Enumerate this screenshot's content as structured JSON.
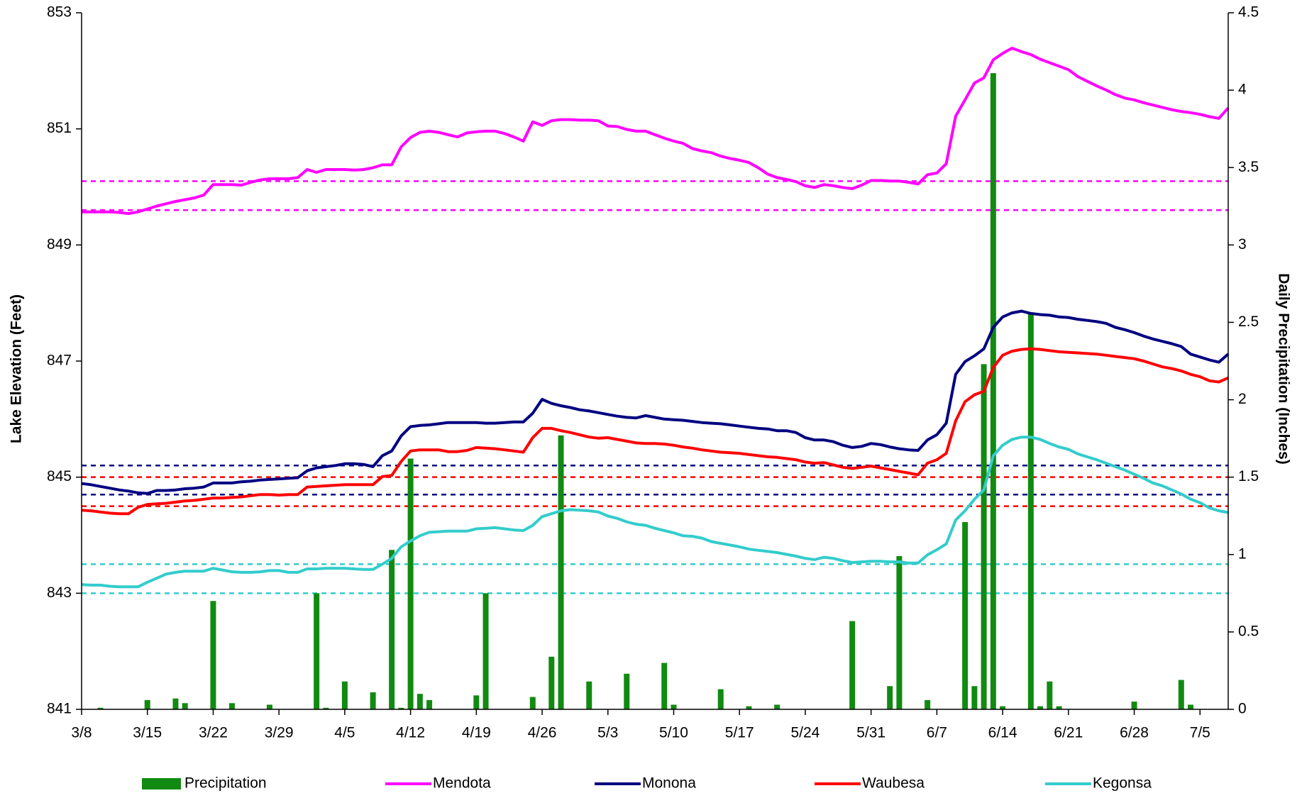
{
  "chart_data": {
    "type": "line",
    "ylabel": "Lake Elevation (Feet)",
    "y2label": "Daily Precipitation (Inches)",
    "ylim": [
      841,
      853
    ],
    "yticks": [
      841,
      843,
      845,
      847,
      849,
      851,
      853
    ],
    "y2lim": [
      0,
      4.5
    ],
    "y2ticks": [
      0,
      0.5,
      1,
      1.5,
      2,
      2.5,
      3,
      3.5,
      4,
      4.5
    ],
    "legend": "bottom",
    "categories": [
      "3/8",
      null,
      null,
      null,
      null,
      null,
      null,
      "3/15",
      null,
      null,
      null,
      null,
      null,
      null,
      "3/22",
      null,
      null,
      null,
      null,
      null,
      null,
      "3/29",
      null,
      null,
      null,
      null,
      null,
      null,
      "4/5",
      null,
      null,
      null,
      null,
      null,
      null,
      "4/12",
      null,
      null,
      null,
      null,
      null,
      null,
      "4/19",
      null,
      null,
      null,
      null,
      null,
      null,
      "4/26",
      null,
      null,
      null,
      null,
      null,
      null,
      "5/3",
      null,
      null,
      null,
      null,
      null,
      null,
      "5/10",
      null,
      null,
      null,
      null,
      null,
      null,
      "5/17",
      null,
      null,
      null,
      null,
      null,
      null,
      "5/24",
      null,
      null,
      null,
      null,
      null,
      null,
      "5/31",
      null,
      null,
      null,
      null,
      null,
      null,
      "6/7",
      null,
      null,
      null,
      null,
      null,
      null,
      "6/14",
      null,
      null,
      null,
      null,
      null,
      null,
      "6/21",
      null,
      null,
      null,
      null,
      null,
      null,
      "6/28",
      null,
      null,
      null,
      null,
      null,
      null,
      "7/5",
      null,
      null,
      null
    ],
    "reference_lines": [
      {
        "value": 850.1,
        "color": "#ff00ff"
      },
      {
        "value": 849.6,
        "color": "#ff00ff"
      },
      {
        "value": 845.2,
        "color": "#000080"
      },
      {
        "value": 844.7,
        "color": "#000080"
      },
      {
        "value": 845.0,
        "color": "#ff0000"
      },
      {
        "value": 844.5,
        "color": "#ff0000"
      },
      {
        "value": 843.5,
        "color": "#33cccc"
      },
      {
        "value": 843.0,
        "color": "#33cccc"
      }
    ],
    "series": [
      {
        "name": "Precipitation",
        "type": "bar",
        "axis": "y2",
        "color": "#118a11",
        "values": [
          0,
          0,
          0.01,
          0,
          0,
          0,
          0,
          0.06,
          0,
          0,
          0.07,
          0.04,
          0,
          0,
          0.7,
          0,
          0.04,
          0,
          0,
          0,
          0.03,
          0,
          0,
          0,
          0,
          0.75,
          0.01,
          0,
          0.18,
          0,
          0,
          0.11,
          0,
          1.03,
          0.01,
          1.62,
          0.1,
          0.06,
          0,
          0,
          0,
          0,
          0.09,
          0.75,
          0,
          0,
          0,
          0,
          0.08,
          0,
          0.34,
          1.77,
          0,
          0,
          0.18,
          0,
          0,
          0,
          0.23,
          0,
          0,
          0,
          0.3,
          0.03,
          0,
          0,
          0,
          0,
          0.13,
          0,
          0,
          0.02,
          0,
          0,
          0.03,
          0,
          0,
          0,
          0,
          0,
          0,
          0,
          0.57,
          0,
          0,
          0,
          0.15,
          0.99,
          0,
          0,
          0.06,
          0,
          0,
          0,
          1.21,
          0.15,
          2.23,
          4.11,
          0.02,
          0,
          0,
          2.56,
          0.02,
          0.18,
          0.02,
          0,
          0,
          0,
          0,
          0,
          0,
          0,
          0.05,
          0,
          0,
          0,
          0,
          0.19,
          0.03,
          0,
          0,
          0,
          0
        ]
      },
      {
        "name": "Mendota",
        "type": "line",
        "color": "#ff00ff",
        "values": [
          849.57,
          849.57,
          849.57,
          849.57,
          849.56,
          849.54,
          849.57,
          849.62,
          849.67,
          849.71,
          849.75,
          849.78,
          849.81,
          849.86,
          850.04,
          850.04,
          850.04,
          850.03,
          850.08,
          850.12,
          850.14,
          850.14,
          850.14,
          850.16,
          850.3,
          850.25,
          850.3,
          850.3,
          850.3,
          850.29,
          850.3,
          850.33,
          850.38,
          850.38,
          850.69,
          850.85,
          850.94,
          850.96,
          850.94,
          850.9,
          850.86,
          850.93,
          850.95,
          850.96,
          850.96,
          850.92,
          850.86,
          850.79,
          851.12,
          851.06,
          851.14,
          851.16,
          851.16,
          851.15,
          851.15,
          851.14,
          851.05,
          851.04,
          850.99,
          850.96,
          850.96,
          850.9,
          850.84,
          850.79,
          850.75,
          850.66,
          850.62,
          850.59,
          850.53,
          850.49,
          850.46,
          850.42,
          850.33,
          850.22,
          850.16,
          850.13,
          850.09,
          850.02,
          849.99,
          850.04,
          850.02,
          849.99,
          849.97,
          850.03,
          850.11,
          850.11,
          850.1,
          850.1,
          850.08,
          850.05,
          850.21,
          850.24,
          850.4,
          851.22,
          851.5,
          851.79,
          851.88,
          852.19,
          852.3,
          852.39,
          852.33,
          852.28,
          852.2,
          852.14,
          852.08,
          852.02,
          851.9,
          851.82,
          851.74,
          851.67,
          851.59,
          851.53,
          851.5,
          851.45,
          851.41,
          851.37,
          851.33,
          851.3,
          851.28,
          851.25,
          851.21,
          851.18,
          851.36
        ]
      },
      {
        "name": "Monona",
        "type": "line",
        "color": "#000080",
        "values": [
          844.89,
          844.87,
          844.84,
          844.81,
          844.78,
          844.76,
          844.73,
          844.72,
          844.77,
          844.77,
          844.78,
          844.8,
          844.81,
          844.83,
          844.9,
          844.9,
          844.9,
          844.92,
          844.93,
          844.95,
          844.96,
          844.97,
          844.98,
          844.99,
          845.11,
          845.16,
          845.18,
          845.2,
          845.23,
          845.23,
          845.22,
          845.18,
          845.37,
          845.45,
          845.71,
          845.87,
          845.89,
          845.9,
          845.92,
          845.94,
          845.94,
          845.94,
          845.94,
          845.93,
          845.93,
          845.94,
          845.95,
          845.95,
          846.1,
          846.34,
          846.27,
          846.23,
          846.2,
          846.16,
          846.14,
          846.11,
          846.08,
          846.05,
          846.03,
          846.02,
          846.06,
          846.03,
          846.0,
          845.99,
          845.98,
          845.96,
          845.94,
          845.93,
          845.92,
          845.9,
          845.88,
          845.86,
          845.84,
          845.83,
          845.8,
          845.8,
          845.77,
          845.68,
          845.64,
          845.64,
          845.61,
          845.55,
          845.51,
          845.53,
          845.58,
          845.56,
          845.52,
          845.49,
          845.47,
          845.46,
          845.64,
          845.73,
          845.93,
          846.77,
          846.99,
          847.09,
          847.21,
          847.58,
          847.76,
          847.83,
          847.86,
          847.82,
          847.8,
          847.79,
          847.76,
          847.75,
          847.72,
          847.7,
          847.68,
          847.65,
          847.58,
          847.54,
          847.49,
          847.43,
          847.38,
          847.34,
          847.3,
          847.25,
          847.12,
          847.07,
          847.02,
          846.98,
          847.12
        ]
      },
      {
        "name": "Waubesa",
        "type": "line",
        "color": "#ff0000",
        "values": [
          844.43,
          844.42,
          844.4,
          844.38,
          844.37,
          844.37,
          844.48,
          844.53,
          844.54,
          844.55,
          844.57,
          844.59,
          844.6,
          844.62,
          844.64,
          844.64,
          844.65,
          844.66,
          844.68,
          844.7,
          844.7,
          844.69,
          844.7,
          844.7,
          844.83,
          844.84,
          844.85,
          844.86,
          844.87,
          844.87,
          844.87,
          844.87,
          845.01,
          845.03,
          845.27,
          845.45,
          845.47,
          845.47,
          845.47,
          845.44,
          845.44,
          845.46,
          845.51,
          845.5,
          845.49,
          845.47,
          845.45,
          845.43,
          845.68,
          845.84,
          845.84,
          845.8,
          845.77,
          845.73,
          845.69,
          845.67,
          845.68,
          845.65,
          845.62,
          845.59,
          845.58,
          845.58,
          845.57,
          845.55,
          845.52,
          845.5,
          845.47,
          845.45,
          845.43,
          845.42,
          845.41,
          845.39,
          845.37,
          845.35,
          845.34,
          845.32,
          845.3,
          845.26,
          845.24,
          845.25,
          845.21,
          845.17,
          845.15,
          845.17,
          845.19,
          845.16,
          845.13,
          845.1,
          845.07,
          845.04,
          845.24,
          845.3,
          845.41,
          845.97,
          846.3,
          846.42,
          846.48,
          846.89,
          847.1,
          847.17,
          847.2,
          847.21,
          847.2,
          847.18,
          847.16,
          847.15,
          847.14,
          847.13,
          847.12,
          847.1,
          847.08,
          847.06,
          847.04,
          847.0,
          846.95,
          846.9,
          846.87,
          846.83,
          846.77,
          846.73,
          846.66,
          846.64,
          846.71
        ]
      },
      {
        "name": "Kegonsa",
        "type": "line",
        "color": "#33cccc",
        "values": [
          843.15,
          843.14,
          843.14,
          843.12,
          843.11,
          843.11,
          843.11,
          843.19,
          843.26,
          843.33,
          843.36,
          843.38,
          843.38,
          843.38,
          843.43,
          843.4,
          843.37,
          843.36,
          843.36,
          843.37,
          843.39,
          843.39,
          843.36,
          843.36,
          843.42,
          843.42,
          843.43,
          843.43,
          843.43,
          843.42,
          843.41,
          843.41,
          843.5,
          843.6,
          843.8,
          843.9,
          843.99,
          844.05,
          844.06,
          844.07,
          844.07,
          844.07,
          844.11,
          844.12,
          844.13,
          844.11,
          844.09,
          844.08,
          844.17,
          844.32,
          844.37,
          844.42,
          844.44,
          844.43,
          844.42,
          844.4,
          844.33,
          844.29,
          844.23,
          844.19,
          844.17,
          844.12,
          844.08,
          844.04,
          843.99,
          843.98,
          843.95,
          843.89,
          843.86,
          843.83,
          843.8,
          843.76,
          843.74,
          843.72,
          843.7,
          843.67,
          843.64,
          843.6,
          843.58,
          843.62,
          843.6,
          843.56,
          843.53,
          843.54,
          843.55,
          843.55,
          843.54,
          843.54,
          843.52,
          843.52,
          843.66,
          843.75,
          843.85,
          844.26,
          844.42,
          844.62,
          844.78,
          845.37,
          845.55,
          845.65,
          845.69,
          845.69,
          845.65,
          845.58,
          845.52,
          845.48,
          845.4,
          845.35,
          845.3,
          845.24,
          845.18,
          845.12,
          845.05,
          844.98,
          844.9,
          844.85,
          844.78,
          844.71,
          844.62,
          844.56,
          844.47,
          844.42,
          844.39
        ]
      }
    ]
  }
}
